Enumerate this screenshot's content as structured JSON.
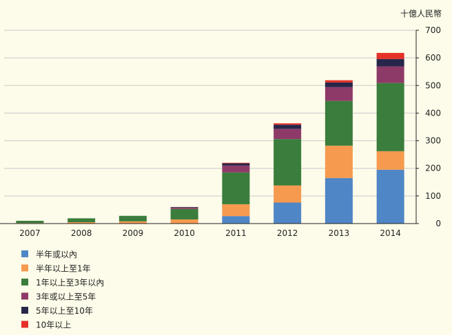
{
  "chart_data": {
    "type": "bar",
    "stacked": true,
    "y_unit": "十億人民幣",
    "y_axis_position": "right",
    "ylim": [
      0,
      700
    ],
    "yticks": [
      0,
      100,
      200,
      300,
      400,
      500,
      600,
      700
    ],
    "categories": [
      "2007",
      "2008",
      "2009",
      "2010",
      "2011",
      "2012",
      "2013",
      "2014"
    ],
    "grid": "horizontal",
    "legend_position": "bottom-left",
    "series": [
      {
        "name": "半年或以內",
        "color": "#4f86c6",
        "values": [
          0,
          0,
          0,
          0,
          27,
          76,
          165,
          195
        ]
      },
      {
        "name": "半年以上至1年",
        "color": "#f59a4f",
        "values": [
          2,
          5,
          8,
          15,
          43,
          62,
          117,
          67
        ]
      },
      {
        "name": "1年以上至3年以內",
        "color": "#3a7d3c",
        "values": [
          8,
          14,
          20,
          38,
          115,
          168,
          162,
          247
        ]
      },
      {
        "name": "3年或以上至5年",
        "color": "#8e3a68",
        "values": [
          0,
          0,
          0,
          5,
          25,
          37,
          50,
          60
        ]
      },
      {
        "name": "5年以上至10年",
        "color": "#27264a",
        "values": [
          0,
          0,
          0,
          2,
          8,
          15,
          17,
          27
        ]
      },
      {
        "name": "10年以上",
        "color": "#e53028",
        "values": [
          0,
          0,
          0,
          0,
          2,
          5,
          8,
          22
        ]
      }
    ]
  }
}
